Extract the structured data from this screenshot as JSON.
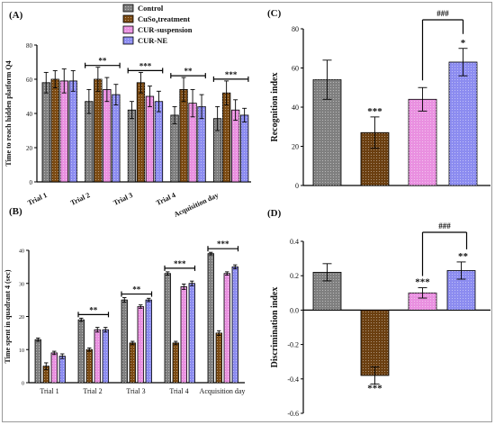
{
  "chart_data": [
    {
      "panel": "(A)",
      "type": "bar",
      "ylabel": "Time to reach hidden platform Q4",
      "ylim": [
        0,
        80
      ],
      "yticks": [
        "0",
        "20",
        "40",
        "60",
        "80"
      ],
      "categories": [
        "Trial 1",
        "Trial 2",
        "Trial 3",
        "Trial 4",
        "Acquisition day"
      ],
      "series": [
        {
          "name": "Control",
          "color": "#7f7f7f",
          "values": [
            58,
            47,
            42,
            39,
            37
          ],
          "errors": [
            6,
            7,
            5,
            5,
            7
          ]
        },
        {
          "name": "CuSo₄treatment",
          "color": "#7b4a12",
          "values": [
            60,
            60,
            58,
            54,
            52
          ],
          "errors": [
            5,
            7,
            6,
            7,
            7
          ]
        },
        {
          "name": "CUR-suspension",
          "color": "#e990e0",
          "values": [
            59,
            54,
            50,
            46,
            42
          ],
          "errors": [
            7,
            7,
            6,
            8,
            6
          ]
        },
        {
          "name": "CUR-NE",
          "color": "#8c8cf0",
          "values": [
            59,
            51,
            47,
            44,
            39
          ],
          "errors": [
            6,
            6,
            6,
            7,
            4
          ]
        }
      ],
      "annotations": [
        "**",
        "***",
        "**",
        "***"
      ],
      "legend": "top"
    },
    {
      "panel": "(B)",
      "type": "bar",
      "ylabel": "Time spent in quadrant 4 (sec)",
      "ylim": [
        0,
        40
      ],
      "yticks": [
        "0",
        "10",
        "20",
        "30",
        "40"
      ],
      "categories": [
        "Trial 1",
        "Trial 2",
        "Trial 3",
        "Trial 4",
        "Acquisition day"
      ],
      "series": [
        {
          "name": "Control",
          "color": "#7f7f7f",
          "values": [
            13,
            19,
            25,
            33,
            39
          ],
          "errors": [
            0.5,
            0.5,
            0.7,
            0.5,
            0.4
          ]
        },
        {
          "name": "CuSo₄treatment",
          "color": "#7b4a12",
          "values": [
            5,
            10,
            12,
            12,
            15
          ],
          "errors": [
            1,
            0.5,
            0.5,
            0.5,
            0.7
          ]
        },
        {
          "name": "CUR-suspension",
          "color": "#e990e0",
          "values": [
            9,
            16,
            23,
            29,
            33
          ],
          "errors": [
            0.5,
            0.7,
            0.5,
            0.8,
            0.5
          ]
        },
        {
          "name": "CUR-NE",
          "color": "#8c8cf0",
          "values": [
            8,
            16,
            25,
            30,
            35
          ],
          "errors": [
            0.7,
            0.7,
            0.5,
            0.7,
            0.6
          ]
        }
      ],
      "annotations": [
        "**",
        "**",
        "***",
        "***"
      ]
    },
    {
      "panel": "(C)",
      "type": "bar",
      "ylabel": "Recognition index",
      "ylim": [
        0,
        80
      ],
      "yticks": [
        "0",
        "20",
        "40",
        "60",
        "80"
      ],
      "values": [
        54,
        27,
        44,
        63
      ],
      "errors": [
        10,
        8,
        6,
        7
      ],
      "colors": [
        "#7f7f7f",
        "#6b3f10",
        "#e990e0",
        "#8c8cf0"
      ],
      "annotations": [
        "***",
        "*",
        "###"
      ]
    },
    {
      "panel": "(D)",
      "type": "bar",
      "ylabel": "Discrimination index",
      "ylim": [
        -0.6,
        0.4
      ],
      "yticks": [
        "0.4",
        "0.2",
        "0.0",
        "-0.2",
        "-0.4",
        "-0.6"
      ],
      "values": [
        0.22,
        -0.38,
        0.1,
        0.23
      ],
      "errors": [
        0.05,
        0.05,
        0.03,
        0.05
      ],
      "colors": [
        "#7f7f7f",
        "#6b3f10",
        "#e990e0",
        "#8c8cf0"
      ],
      "annotations": [
        "***",
        "***",
        "**",
        "###"
      ]
    }
  ]
}
